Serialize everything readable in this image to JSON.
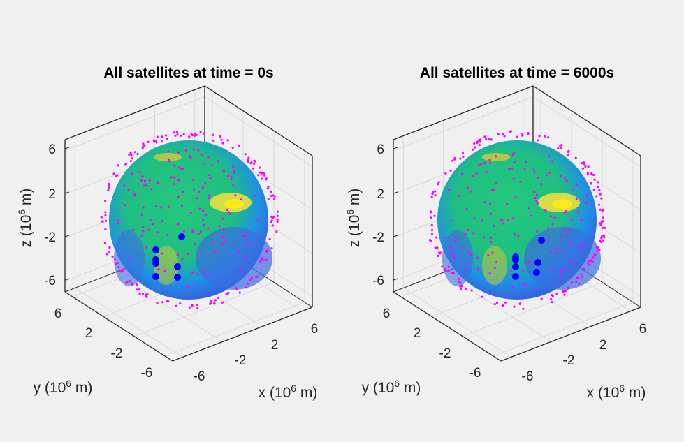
{
  "chart_data": [
    {
      "type": "scatter3d",
      "title": "All satellites at time = 0s",
      "xlabel": "x (10^6 m)",
      "ylabel": "y (10^6 m)",
      "zlabel": "z (10^6 m)",
      "axis_label_parts": {
        "x": "x (10",
        "y": "y (10",
        "z": "z (10",
        "exp": "6",
        "unit": " m)"
      },
      "xticks": [
        "-6",
        "-2",
        "2",
        "6"
      ],
      "yticks": [
        "6",
        "2",
        "-2",
        "-6"
      ],
      "zticks": [
        "6",
        "2",
        "-2",
        "-6"
      ],
      "xlim": [
        -7,
        7
      ],
      "ylim": [
        -7,
        7
      ],
      "zlim": [
        -7,
        7
      ],
      "grid": true,
      "background": "earth-globe-surface",
      "series": [
        {
          "marker_color": "#ff00ff",
          "marker": "small-dot"
        },
        {
          "marker_color": "#0000ff",
          "marker": "large-dot"
        }
      ]
    },
    {
      "type": "scatter3d",
      "title": "All satellites at time = 6000s",
      "xlabel": "x (10^6 m)",
      "ylabel": "y (10^6 m)",
      "zlabel": "z (10^6 m)",
      "axis_label_parts": {
        "x": "x (10",
        "y": "y (10",
        "z": "z (10",
        "exp": "6",
        "unit": " m)"
      },
      "xticks": [
        "-6",
        "-2",
        "2",
        "6"
      ],
      "yticks": [
        "6",
        "2",
        "-2",
        "-6"
      ],
      "zticks": [
        "6",
        "2",
        "-2",
        "-6"
      ],
      "xlim": [
        -7,
        7
      ],
      "ylim": [
        -7,
        7
      ],
      "zlim": [
        -7,
        7
      ],
      "grid": true,
      "background": "earth-globe-surface",
      "series": [
        {
          "marker_color": "#ff00ff",
          "marker": "small-dot"
        },
        {
          "marker_color": "#0000ff",
          "marker": "large-dot"
        }
      ]
    }
  ]
}
